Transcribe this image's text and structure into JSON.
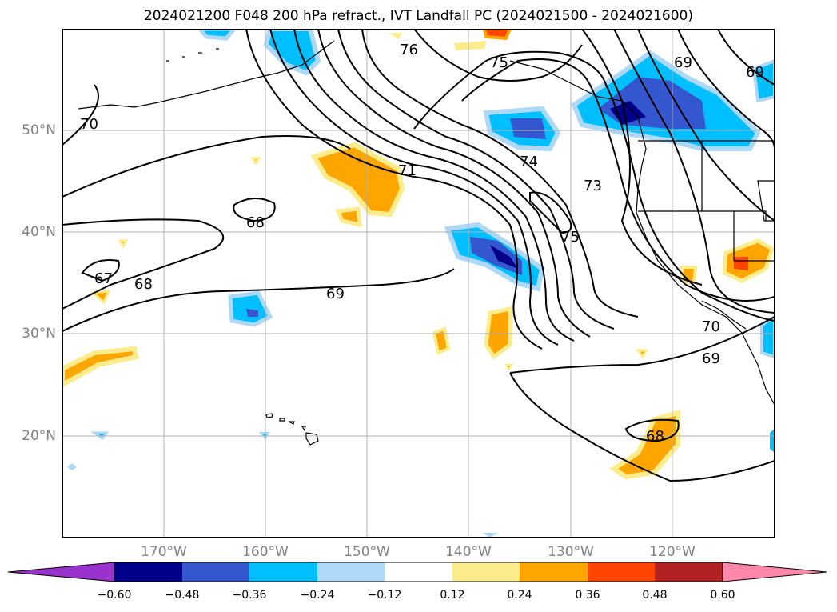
{
  "title": "2024021200 F048 200 hPa refract., IVT Landfall PC (2024021500 - 2024021600)",
  "lat_labels": [
    "50°N",
    "40°N",
    "30°N",
    "20°N"
  ],
  "lon_labels": [
    "170°W",
    "160°W",
    "150°W",
    "140°W",
    "130°W",
    "120°W"
  ],
  "contour_labels": [
    "76",
    "75",
    "69",
    "69",
    "70",
    "71",
    "74",
    "73",
    "68",
    "75",
    "67",
    "68",
    "69",
    "70",
    "69",
    "68"
  ],
  "colorbar": {
    "tick_labels": [
      "−0.60",
      "−0.48",
      "−0.36",
      "−0.24",
      "−0.12",
      "0.12",
      "0.24",
      "0.36",
      "0.48",
      "0.60"
    ],
    "colors": [
      "#9932cc",
      "#00008b",
      "#3457cf",
      "#00bfff",
      "#add8f8",
      "#ffffff",
      "#fcec8c",
      "#ffa500",
      "#ff4500",
      "#b22222",
      "#ff88aa"
    ]
  }
}
